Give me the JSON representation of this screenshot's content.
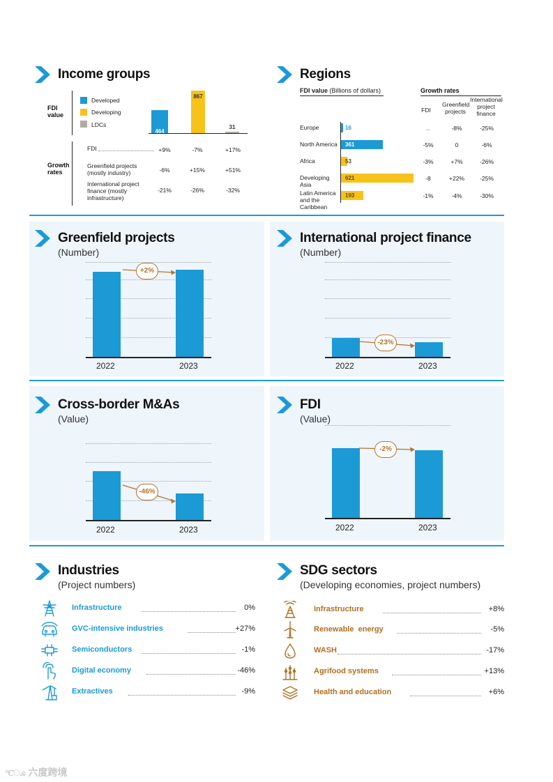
{
  "colors": {
    "accent_blue": "#1b9ad6",
    "accent_yellow": "#f7c21a",
    "ldc_grey": "#b0aaa2",
    "pill_brown": "#b5742e",
    "panel_bg": "#eef5fb"
  },
  "income": {
    "title": "Income groups",
    "fdi_value_label": "FDI value",
    "growth_rates_label": "Growth rates",
    "legend": [
      "Developed",
      "Developing",
      "LDCs"
    ],
    "bars": [
      {
        "group": "Developed",
        "value": 464
      },
      {
        "group": "Developing",
        "value": 867
      },
      {
        "group": "LDCs",
        "value": 31
      }
    ],
    "bar_labels": [
      "464",
      "867",
      "31"
    ],
    "rows": [
      {
        "label": "FDI",
        "values": [
          "+9%",
          "-7%",
          "+17%"
        ]
      },
      {
        "label": "Greenfield projects (mostly industry)",
        "values": [
          "-6%",
          "+15%",
          "+51%"
        ]
      },
      {
        "label": "International project finance (mostly infrastructure)",
        "values": [
          "-21%",
          "-26%",
          "-32%"
        ]
      }
    ]
  },
  "regions": {
    "title": "Regions",
    "fdi_header_bold": "FDI value",
    "fdi_header_rest": "(Billions of dollars)",
    "growth_header": "Growth rates",
    "col_headers": [
      "FDI",
      "Greenfield projects",
      "International project finance"
    ],
    "rows": [
      {
        "name": "Europe",
        "value": 16,
        "label": "16",
        "color": "#1b9ad6",
        "rates": [
          "..",
          "-8%",
          "-25%"
        ]
      },
      {
        "name": "North America",
        "value": 361,
        "label": "361",
        "color": "#1b9ad6",
        "rates": [
          "-5%",
          "0",
          "-6%"
        ]
      },
      {
        "name": "Africa",
        "value": 53,
        "label": "53",
        "color": "#f7c21a",
        "rates": [
          "-3%",
          "+7%",
          "-26%"
        ]
      },
      {
        "name": "Developing Asia",
        "value": 621,
        "label": "621",
        "color": "#f7c21a",
        "rates": [
          "-8",
          "+22%",
          "-25%"
        ]
      },
      {
        "name": "Latin America and the Caribbean",
        "value": 193,
        "label": "193",
        "color": "#f7c21a",
        "rates": [
          "-1%",
          "-4%",
          "-30%"
        ]
      }
    ]
  },
  "panels": {
    "greenfield": {
      "title": "Greenfield projects",
      "subtitle": "(Number)",
      "change": "+2%",
      "years": [
        "2022",
        "2023"
      ],
      "values_rel": [
        0.8,
        0.82
      ]
    },
    "ipf": {
      "title": "International project finance",
      "subtitle": "(Number)",
      "change": "-23%",
      "years": [
        "2022",
        "2023"
      ],
      "values_rel": [
        0.18,
        0.14
      ]
    },
    "mna": {
      "title": "Cross-border M&As",
      "subtitle": "(Value)",
      "change": "-46%",
      "years": [
        "2022",
        "2023"
      ],
      "values_rel": [
        0.46,
        0.25
      ]
    },
    "fdi": {
      "title": "FDI",
      "subtitle": "(Value)",
      "change": "-2%",
      "years": [
        "2022",
        "2023"
      ],
      "values_rel": [
        0.75,
        0.73
      ]
    }
  },
  "industries": {
    "title": "Industries",
    "subtitle": "(Project numbers)",
    "items": [
      {
        "name": "Infrastructure",
        "value": "0%",
        "icon": "power-tower-icon"
      },
      {
        "name": "GVC-intensive industries",
        "value": "+27%",
        "icon": "car-icon"
      },
      {
        "name": "Semiconductors",
        "value": "-1%",
        "icon": "chip-icon"
      },
      {
        "name": "Digital economy",
        "value": "-46%",
        "icon": "touch-hand-icon"
      },
      {
        "name": "Extractives",
        "value": "-9%",
        "icon": "oil-pump-icon"
      }
    ]
  },
  "sdg": {
    "title": "SDG sectors",
    "subtitle": "(Developing economies, project numbers)",
    "items": [
      {
        "name": "Infrastructure",
        "value": "+8%",
        "icon": "tower-icon"
      },
      {
        "name": "Renewable  energy",
        "value": "-5%",
        "icon": "wind-turbine-icon"
      },
      {
        "name": "WASH",
        "value": "-17%",
        "icon": "water-drop-icon"
      },
      {
        "name": "Agrifood systems",
        "value": "+13%",
        "icon": "wheat-icon"
      },
      {
        "name": "Health and education",
        "value": "+6%",
        "icon": "books-icon"
      }
    ]
  },
  "watermark": "六度跨境"
}
